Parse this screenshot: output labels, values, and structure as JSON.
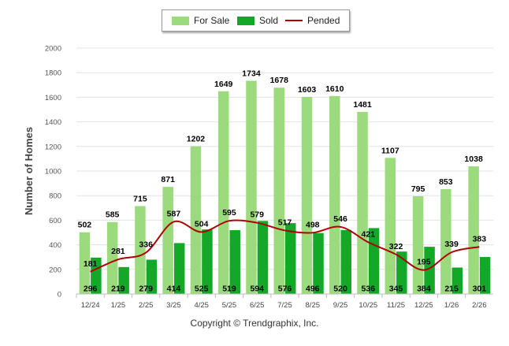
{
  "chart_data": {
    "type": "bar",
    "title": "",
    "ylabel": "Number of Homes",
    "xlabel": "",
    "ylim": [
      0,
      2000
    ],
    "yticks": [
      0,
      200,
      400,
      600,
      800,
      1000,
      1200,
      1400,
      1600,
      1800,
      2000
    ],
    "grid": "horizontal",
    "legend_position": "top-center",
    "categories": [
      "12/24",
      "1/25",
      "2/25",
      "3/25",
      "4/25",
      "5/25",
      "6/25",
      "7/25",
      "8/25",
      "9/25",
      "10/25",
      "11/25",
      "12/25",
      "1/26",
      "2/26"
    ],
    "series": [
      {
        "name": "For Sale",
        "kind": "bar",
        "color": "#9bdb7d",
        "values": [
          502,
          585,
          715,
          871,
          1202,
          1649,
          1734,
          1678,
          1603,
          1610,
          1481,
          1107,
          795,
          853,
          1038
        ]
      },
      {
        "name": "Sold",
        "kind": "bar",
        "color": "#14a829",
        "values": [
          296,
          219,
          279,
          414,
          525,
          519,
          594,
          576,
          496,
          520,
          536,
          345,
          384,
          215,
          301
        ]
      },
      {
        "name": "Pended",
        "kind": "line",
        "color": "#b00000",
        "values": [
          181,
          281,
          336,
          587,
          504,
          595,
          579,
          517,
          498,
          546,
          421,
          322,
          195,
          339,
          383
        ]
      }
    ]
  },
  "legend": {
    "for_sale": "For Sale",
    "sold": "Sold",
    "pended": "Pended"
  },
  "copyright": "Copyright © Trendgraphix, Inc."
}
